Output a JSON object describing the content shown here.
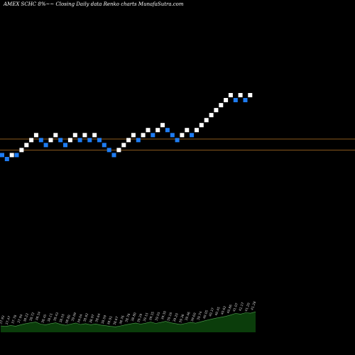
{
  "chart_data": {
    "type": "renko",
    "title": "AMEX  SCHC 8%~~  Closing Daily data  Renko  charts MunafaSutra.com",
    "brick_size": 0.62,
    "colors": {
      "up": "#ffffff",
      "down": "#1e7cf2",
      "background": "#000000",
      "reference_line": "#8b5a1e",
      "volume_fill": "#0b3d0b",
      "volume_line": "#4fa64f",
      "label": "#cccccc"
    },
    "reference_lines": [
      38.3,
      38.85
    ],
    "bricks": [
      {
        "close": 38.05,
        "dir": "down"
      },
      {
        "close": 37.85,
        "dir": "down"
      },
      {
        "close": 38.05,
        "dir": "up"
      },
      {
        "close": 38.05,
        "dir": "down"
      },
      {
        "close": 38.3,
        "dir": "up"
      },
      {
        "close": 38.55,
        "dir": "up"
      },
      {
        "close": 38.8,
        "dir": "up"
      },
      {
        "close": 39.05,
        "dir": "up"
      },
      {
        "close": 38.8,
        "dir": "down"
      },
      {
        "close": 38.55,
        "dir": "down"
      },
      {
        "close": 38.8,
        "dir": "up"
      },
      {
        "close": 39.05,
        "dir": "up"
      },
      {
        "close": 38.8,
        "dir": "down"
      },
      {
        "close": 38.55,
        "dir": "down"
      },
      {
        "close": 38.8,
        "dir": "up"
      },
      {
        "close": 39.05,
        "dir": "up"
      },
      {
        "close": 38.8,
        "dir": "down"
      },
      {
        "close": 39.05,
        "dir": "up"
      },
      {
        "close": 38.8,
        "dir": "down"
      },
      {
        "close": 39.05,
        "dir": "up"
      },
      {
        "close": 38.8,
        "dir": "down"
      },
      {
        "close": 38.55,
        "dir": "down"
      },
      {
        "close": 38.3,
        "dir": "down"
      },
      {
        "close": 38.05,
        "dir": "down"
      },
      {
        "close": 38.3,
        "dir": "up"
      },
      {
        "close": 38.55,
        "dir": "up"
      },
      {
        "close": 38.8,
        "dir": "up"
      },
      {
        "close": 39.05,
        "dir": "up"
      },
      {
        "close": 38.8,
        "dir": "down"
      },
      {
        "close": 39.05,
        "dir": "up"
      },
      {
        "close": 39.3,
        "dir": "up"
      },
      {
        "close": 39.05,
        "dir": "down"
      },
      {
        "close": 39.3,
        "dir": "up"
      },
      {
        "close": 39.55,
        "dir": "up"
      },
      {
        "close": 39.3,
        "dir": "down"
      },
      {
        "close": 39.05,
        "dir": "down"
      },
      {
        "close": 38.8,
        "dir": "down"
      },
      {
        "close": 39.05,
        "dir": "up"
      },
      {
        "close": 39.3,
        "dir": "up"
      },
      {
        "close": 39.05,
        "dir": "down"
      },
      {
        "close": 39.3,
        "dir": "up"
      },
      {
        "close": 39.55,
        "dir": "up"
      },
      {
        "close": 39.8,
        "dir": "up"
      },
      {
        "close": 40.05,
        "dir": "up"
      },
      {
        "close": 40.3,
        "dir": "up"
      },
      {
        "close": 40.55,
        "dir": "up"
      },
      {
        "close": 40.8,
        "dir": "up"
      },
      {
        "close": 41.05,
        "dir": "up"
      },
      {
        "close": 40.8,
        "dir": "down"
      },
      {
        "close": 41.05,
        "dir": "up"
      },
      {
        "close": 40.8,
        "dir": "down"
      },
      {
        "close": 41.05,
        "dir": "up"
      }
    ],
    "volume": [
      0.28,
      0.26,
      0.3,
      0.27,
      0.33,
      0.38,
      0.42,
      0.45,
      0.36,
      0.33,
      0.38,
      0.42,
      0.35,
      0.31,
      0.36,
      0.41,
      0.34,
      0.38,
      0.33,
      0.37,
      0.32,
      0.29,
      0.26,
      0.24,
      0.28,
      0.33,
      0.37,
      0.41,
      0.36,
      0.4,
      0.45,
      0.39,
      0.43,
      0.48,
      0.42,
      0.38,
      0.34,
      0.39,
      0.44,
      0.4,
      0.46,
      0.52,
      0.57,
      0.62,
      0.66,
      0.7,
      0.76,
      0.83,
      0.8,
      0.86,
      0.84,
      0.9
    ],
    "price_labels": [
      "37.93",
      "37.47",
      "37.78",
      "37.94",
      "38.22",
      "38.72",
      "38.34",
      "38.45",
      "38.11",
      "38.43",
      "38.55",
      "38.80",
      "39.09",
      "39.04",
      "38.92",
      "38.97",
      "38.64",
      "38.59",
      "38.91",
      "38.67",
      "38.76",
      "38.76",
      "38.80",
      "39.29",
      "39.15",
      "39.35",
      "39.55",
      "39.30",
      "39.16",
      "39.20",
      "39.36",
      "39.46",
      "39.60",
      "39.74",
      "40.05",
      "40.37",
      "40.45",
      "40.62",
      "40.86",
      "41.07",
      "41.17",
      "41.20",
      "41.28"
    ]
  }
}
